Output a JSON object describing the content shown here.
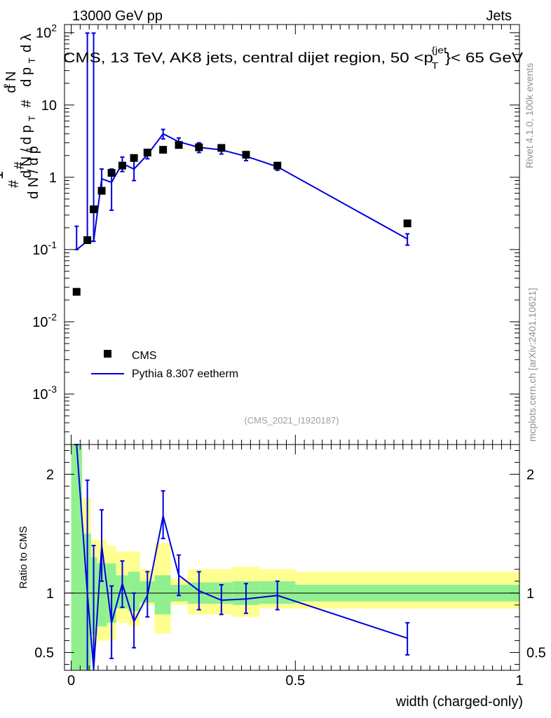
{
  "header": {
    "left": "13000 GeV pp",
    "right": "Jets"
  },
  "side": {
    "rivet": "Rivet 4.1.0,  100k events",
    "mcplots": "mcplots.cern.ch [arXiv:2401.10621]"
  },
  "chart_data": [
    {
      "type": "scatter",
      "title": "CMS, 13 TeV, AK8 jets, central dijet region, 50 < p_T^{jet} < 65 GeV",
      "ylabel": "1/(dN/dpT) d²N/(dpT dλ)",
      "yscale": "log",
      "ylim": [
        0.0002,
        130
      ],
      "xlim": [
        -0.015,
        1.0
      ],
      "y_tick_labels": [
        "10^{-3}",
        "10^{-2}",
        "10^{-1}",
        "1",
        "10",
        "10^{2}"
      ],
      "watermark": "(CMS_2021_I1920187)",
      "legend": {
        "position": "bottom-left",
        "entries": [
          "CMS",
          "Pythia 8.307 eetherm"
        ]
      },
      "series": [
        {
          "name": "CMS",
          "marker": "square",
          "color": "#000000",
          "x": [
            0.012,
            0.036,
            0.05,
            0.068,
            0.09,
            0.114,
            0.14,
            0.17,
            0.205,
            0.24,
            0.285,
            0.335,
            0.39,
            0.46,
            0.75
          ],
          "y": [
            0.026,
            0.135,
            0.36,
            0.65,
            1.15,
            1.45,
            1.85,
            2.2,
            2.4,
            2.8,
            2.6,
            2.55,
            2.05,
            1.45,
            0.23
          ]
        },
        {
          "name": "Pythia 8.307 eetherm",
          "marker": "line",
          "color": "#0000e0",
          "x": [
            0.012,
            0.036,
            0.05,
            0.068,
            0.09,
            0.114,
            0.14,
            0.17,
            0.205,
            0.24,
            0.285,
            0.335,
            0.39,
            0.46,
            0.75
          ],
          "y": [
            0.1,
            0.13,
            0.13,
            0.95,
            0.85,
            1.55,
            1.3,
            2.05,
            4.0,
            3.1,
            2.6,
            2.4,
            1.95,
            1.4,
            0.14
          ],
          "err_low": [
            0.1,
            0.13,
            0.13,
            0.65,
            0.35,
            1.2,
            0.9,
            1.8,
            3.4,
            2.6,
            2.2,
            2.1,
            1.7,
            1.25,
            0.115
          ],
          "err_high": [
            0.21,
            99,
            99,
            1.3,
            1.3,
            1.9,
            1.75,
            2.3,
            4.6,
            3.5,
            3.0,
            2.7,
            2.2,
            1.55,
            0.165
          ]
        }
      ]
    },
    {
      "type": "line",
      "ylabel": "Ratio to CMS",
      "xlabel": "width (charged-only)",
      "ylim": [
        0.35,
        2.25
      ],
      "xlim": [
        -0.015,
        1.0
      ],
      "x_tick_labels": [
        "0",
        "0.5",
        "1"
      ],
      "y_tick_labels": [
        "0.5",
        "1",
        "2"
      ],
      "bands": [
        {
          "x0": 0.0,
          "x1": 0.024,
          "yellow": [
            0.3,
            2.6
          ],
          "green": [
            0.3,
            2.6
          ]
        },
        {
          "x0": 0.024,
          "x1": 0.044,
          "yellow": [
            0.55,
            1.8
          ],
          "green": [
            0.3,
            1.5
          ]
        },
        {
          "x0": 0.044,
          "x1": 0.058,
          "yellow": [
            0.55,
            1.45
          ],
          "green": [
            0.65,
            1.3
          ]
        },
        {
          "x0": 0.058,
          "x1": 0.08,
          "yellow": [
            0.6,
            1.45
          ],
          "green": [
            0.72,
            1.25
          ]
        },
        {
          "x0": 0.08,
          "x1": 0.1,
          "yellow": [
            0.6,
            1.4
          ],
          "green": [
            0.75,
            1.25
          ]
        },
        {
          "x0": 0.1,
          "x1": 0.127,
          "yellow": [
            0.75,
            1.35
          ],
          "green": [
            0.87,
            1.15
          ]
        },
        {
          "x0": 0.127,
          "x1": 0.153,
          "yellow": [
            0.72,
            1.35
          ],
          "green": [
            0.85,
            1.18
          ]
        },
        {
          "x0": 0.153,
          "x1": 0.186,
          "yellow": [
            0.9,
            1.2
          ],
          "green": [
            0.92,
            1.1
          ]
        },
        {
          "x0": 0.186,
          "x1": 0.222,
          "yellow": [
            0.66,
            1.42
          ],
          "green": [
            0.82,
            1.15
          ]
        },
        {
          "x0": 0.222,
          "x1": 0.26,
          "yellow": [
            0.9,
            1.12
          ],
          "green": [
            0.93,
            1.07
          ]
        },
        {
          "x0": 0.26,
          "x1": 0.31,
          "yellow": [
            0.82,
            1.2
          ],
          "green": [
            0.91,
            1.09
          ]
        },
        {
          "x0": 0.31,
          "x1": 0.36,
          "yellow": [
            0.82,
            1.2
          ],
          "green": [
            0.91,
            1.09
          ]
        },
        {
          "x0": 0.36,
          "x1": 0.42,
          "yellow": [
            0.8,
            1.22
          ],
          "green": [
            0.9,
            1.1
          ]
        },
        {
          "x0": 0.42,
          "x1": 0.5,
          "yellow": [
            0.87,
            1.2
          ],
          "green": [
            0.91,
            1.1
          ]
        },
        {
          "x0": 0.5,
          "x1": 1.0,
          "yellow": [
            0.87,
            1.18
          ],
          "green": [
            0.93,
            1.07
          ]
        }
      ],
      "series": [
        {
          "name": "Pythia 8.307 eetherm / CMS",
          "color": "#0000e0",
          "x": [
            0.012,
            0.036,
            0.05,
            0.068,
            0.09,
            0.114,
            0.14,
            0.17,
            0.205,
            0.24,
            0.285,
            0.335,
            0.39,
            0.46,
            0.75
          ],
          "y": [
            3.5,
            1.0,
            0.36,
            1.4,
            0.75,
            1.08,
            0.76,
            0.98,
            1.65,
            1.15,
            1.02,
            0.94,
            0.95,
            0.98,
            0.62
          ],
          "err_low": [
            3.0,
            0.2,
            0.2,
            1.1,
            0.45,
            0.88,
            0.54,
            0.8,
            1.46,
            0.98,
            0.86,
            0.82,
            0.83,
            0.86,
            0.48
          ],
          "err_high": [
            4.0,
            1.95,
            1.4,
            1.7,
            1.06,
            1.27,
            1.0,
            1.18,
            1.86,
            1.32,
            1.18,
            1.07,
            1.08,
            1.1,
            0.75
          ]
        }
      ]
    }
  ]
}
